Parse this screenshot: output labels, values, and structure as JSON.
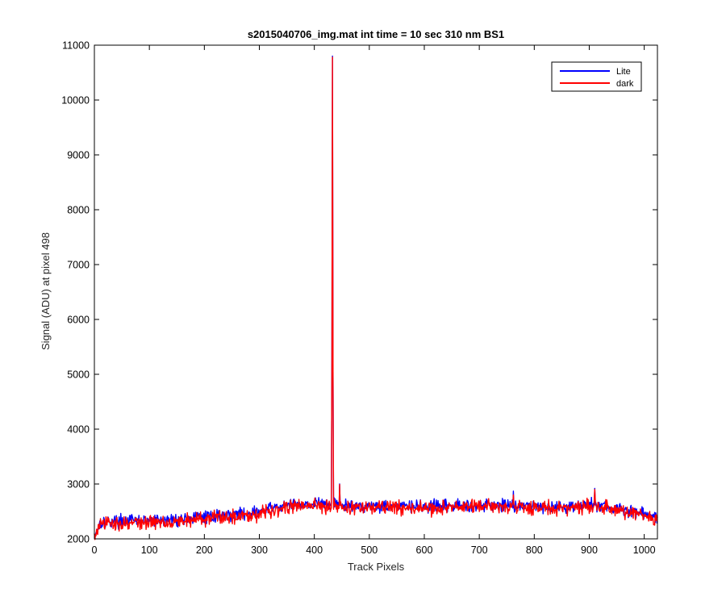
{
  "chart_data": {
    "type": "line",
    "title": "s2015040706_img.mat int time = 10 sec  310 nm BS1",
    "xlabel": "Track Pixels",
    "ylabel": "Signal (ADU) at pixel 498",
    "xlim": [
      0,
      1024
    ],
    "ylim": [
      2000,
      11000
    ],
    "xticks": [
      0,
      100,
      200,
      300,
      400,
      500,
      600,
      700,
      800,
      900,
      1000
    ],
    "yticks": [
      2000,
      3000,
      4000,
      5000,
      6000,
      7000,
      8000,
      9000,
      10000,
      11000
    ],
    "grid": false,
    "legend_position": "top-right",
    "series": [
      {
        "name": "Lite",
        "color": "#0000ff",
        "baseline_points": [
          [
            0,
            2080
          ],
          [
            5,
            2150
          ],
          [
            10,
            2300
          ],
          [
            30,
            2320
          ],
          [
            60,
            2330
          ],
          [
            100,
            2330
          ],
          [
            150,
            2350
          ],
          [
            200,
            2400
          ],
          [
            250,
            2440
          ],
          [
            300,
            2490
          ],
          [
            330,
            2580
          ],
          [
            360,
            2620
          ],
          [
            400,
            2640
          ],
          [
            430,
            2640
          ],
          [
            450,
            2600
          ],
          [
            500,
            2600
          ],
          [
            550,
            2600
          ],
          [
            600,
            2580
          ],
          [
            650,
            2600
          ],
          [
            700,
            2620
          ],
          [
            760,
            2620
          ],
          [
            800,
            2600
          ],
          [
            850,
            2580
          ],
          [
            900,
            2620
          ],
          [
            930,
            2600
          ],
          [
            960,
            2520
          ],
          [
            1000,
            2460
          ],
          [
            1024,
            2380
          ]
        ],
        "noise_amplitude": 110,
        "spikes": [
          [
            432,
            5320
          ],
          [
            433,
            10800
          ],
          [
            434,
            4980
          ],
          [
            436,
            2750
          ],
          [
            446,
            3000
          ],
          [
            762,
            2870
          ],
          [
            910,
            2920
          ]
        ]
      },
      {
        "name": "dark",
        "color": "#ff0000",
        "baseline_points": [
          [
            0,
            2050
          ],
          [
            5,
            2120
          ],
          [
            10,
            2260
          ],
          [
            30,
            2280
          ],
          [
            60,
            2290
          ],
          [
            100,
            2300
          ],
          [
            150,
            2320
          ],
          [
            200,
            2370
          ],
          [
            250,
            2410
          ],
          [
            300,
            2460
          ],
          [
            330,
            2550
          ],
          [
            360,
            2590
          ],
          [
            400,
            2610
          ],
          [
            430,
            2610
          ],
          [
            450,
            2570
          ],
          [
            500,
            2570
          ],
          [
            550,
            2570
          ],
          [
            600,
            2550
          ],
          [
            650,
            2570
          ],
          [
            700,
            2590
          ],
          [
            760,
            2590
          ],
          [
            800,
            2570
          ],
          [
            850,
            2550
          ],
          [
            900,
            2590
          ],
          [
            930,
            2570
          ],
          [
            960,
            2490
          ],
          [
            1000,
            2430
          ],
          [
            1024,
            2350
          ]
        ],
        "noise_amplitude": 130,
        "spikes": [
          [
            432,
            5300
          ],
          [
            433,
            10780
          ],
          [
            434,
            4960
          ],
          [
            436,
            2720
          ],
          [
            446,
            2990
          ],
          [
            762,
            2800
          ],
          [
            910,
            2900
          ]
        ]
      }
    ]
  }
}
